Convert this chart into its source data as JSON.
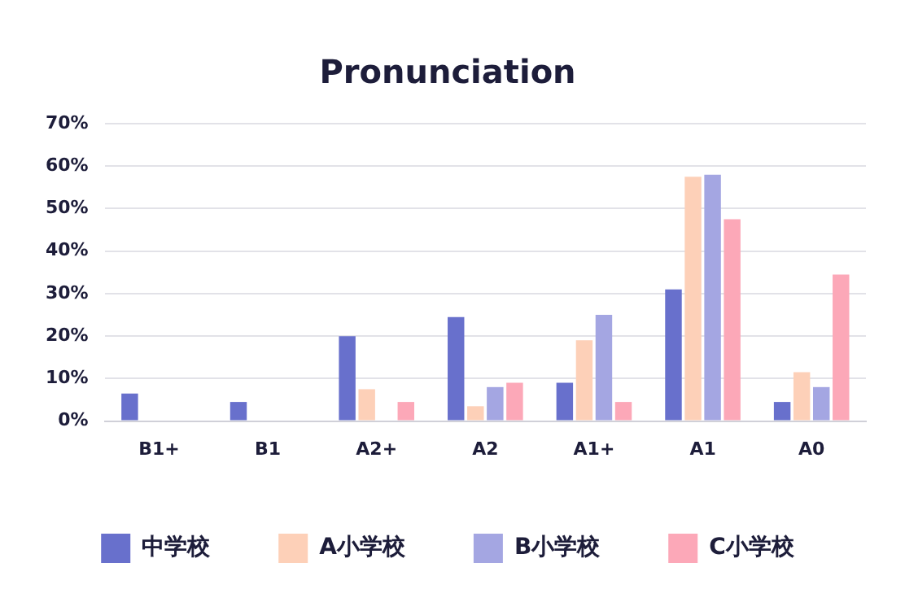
{
  "chart_data": {
    "type": "bar",
    "title": "Pronunciation",
    "categories": [
      "B1+",
      "B1",
      "A2+",
      "A2",
      "A1+",
      "A1",
      "A0"
    ],
    "series": [
      {
        "name": "中学校",
        "color": "#6870cc",
        "values": [
          6.5,
          4.5,
          20,
          24.5,
          9,
          31,
          4.5
        ]
      },
      {
        "name": "A小学校",
        "color": "#fdd0b8",
        "values": [
          0,
          0,
          7.5,
          3.5,
          19,
          57.5,
          11.5
        ]
      },
      {
        "name": "B小学校",
        "color": "#a4a6e2",
        "values": [
          0,
          0,
          0,
          8,
          25,
          58,
          8
        ]
      },
      {
        "name": "C小学校",
        "color": "#fca8b8",
        "values": [
          0,
          0,
          4.5,
          9,
          4.5,
          47.5,
          34.5
        ]
      }
    ],
    "ylim": [
      0,
      70
    ],
    "yticks": [
      {
        "value": 0,
        "label": "0%"
      },
      {
        "value": 10,
        "label": "10%"
      },
      {
        "value": 20,
        "label": "20%"
      },
      {
        "value": 30,
        "label": "30%"
      },
      {
        "value": 40,
        "label": "40%"
      },
      {
        "value": 50,
        "label": "50%"
      },
      {
        "value": 60,
        "label": "60%"
      },
      {
        "value": 70,
        "label": "70%"
      }
    ],
    "grid": "y",
    "legend": "bottom"
  }
}
